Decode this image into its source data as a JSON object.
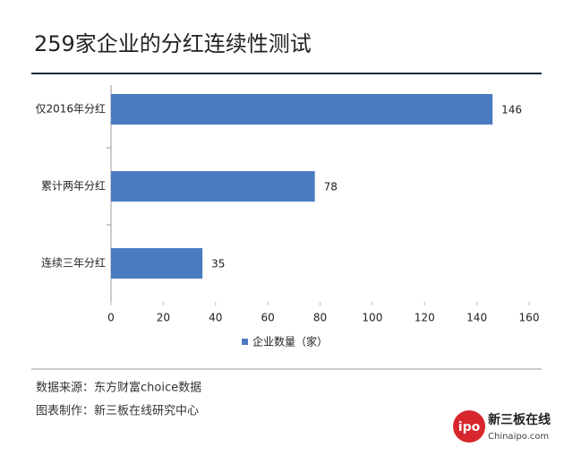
{
  "chart_data": {
    "type": "bar",
    "orientation": "horizontal",
    "title": "259家企业的分红连续性测试",
    "categories": [
      "仅2016年分红",
      "累计两年分红",
      "连续三年分红"
    ],
    "series": [
      {
        "name": "企业数量（家）",
        "color": "#4a7bc0",
        "values": [
          146,
          78,
          35
        ]
      }
    ],
    "xlim": [
      0,
      160
    ],
    "xticks": [
      0,
      20,
      40,
      60,
      80,
      100,
      120,
      140,
      160
    ]
  },
  "footer": {
    "source": "数据来源：东方财富choice数据",
    "credit": "图表制作：新三板在线研究中心"
  },
  "logo": {
    "mark": "ipo",
    "name": "新三板在线",
    "url": "Chinaipo.com"
  }
}
